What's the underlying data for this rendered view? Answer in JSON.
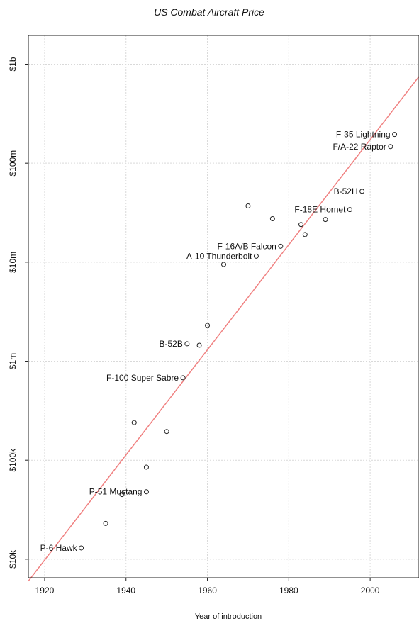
{
  "chart_data": {
    "type": "scatter",
    "title": "US Combat Aircraft Price",
    "xlabel": "Year of introduction",
    "ylabel": "",
    "xlim": [
      1916,
      2012
    ],
    "ylog": true,
    "ylim": [
      6500,
      1950000000
    ],
    "grid": true,
    "xticks": [
      1920,
      1940,
      1960,
      1980,
      2000
    ],
    "xtick_labels": [
      "1920",
      "1940",
      "1960",
      "1980",
      "2000"
    ],
    "yticks": [
      10000,
      100000,
      1000000,
      10000000,
      100000000,
      1000000000
    ],
    "ytick_labels": [
      "$10k",
      "$100k",
      "$1m",
      "$10m",
      "$100m",
      "$1b"
    ],
    "points": [
      {
        "x": 1929,
        "y": 13000,
        "label": "P-6 Hawk",
        "label_side": "left"
      },
      {
        "x": 1935,
        "y": 23000,
        "label": ""
      },
      {
        "x": 1939,
        "y": 45000,
        "label": ""
      },
      {
        "x": 1945,
        "y": 48000,
        "label": "P-51 Mustang",
        "label_side": "left"
      },
      {
        "x": 1945,
        "y": 85000,
        "label": ""
      },
      {
        "x": 1942,
        "y": 240000,
        "label": ""
      },
      {
        "x": 1950,
        "y": 195000,
        "label": ""
      },
      {
        "x": 1954,
        "y": 680000,
        "label": "F-100 Super Sabre",
        "label_side": "left"
      },
      {
        "x": 1955,
        "y": 1500000,
        "label": "B-52B",
        "label_side": "left"
      },
      {
        "x": 1958,
        "y": 1450000,
        "label": ""
      },
      {
        "x": 1960,
        "y": 2300000,
        "label": ""
      },
      {
        "x": 1964,
        "y": 9500000,
        "label": ""
      },
      {
        "x": 1972,
        "y": 11500000,
        "label": "A-10 Thunderbolt",
        "label_side": "left"
      },
      {
        "x": 1978,
        "y": 14500000,
        "label": "F-16A/B Falcon",
        "label_side": "left"
      },
      {
        "x": 1970,
        "y": 37000000,
        "label": ""
      },
      {
        "x": 1976,
        "y": 27500000,
        "label": ""
      },
      {
        "x": 1983,
        "y": 24000000,
        "label": ""
      },
      {
        "x": 1984,
        "y": 19000000,
        "label": ""
      },
      {
        "x": 1989,
        "y": 27000000,
        "label": ""
      },
      {
        "x": 1995,
        "y": 34000000,
        "label": "F-18E Hornet",
        "label_side": "left"
      },
      {
        "x": 1998,
        "y": 52000000,
        "label": "B-52H",
        "label_side": "left"
      },
      {
        "x": 2005,
        "y": 147000000,
        "label": "F/A-22 Raptor",
        "label_side": "left"
      },
      {
        "x": 2006,
        "y": 195000000,
        "label": "F-35 Lightning",
        "label_side": "left"
      }
    ],
    "trend_line": {
      "x": [
        1916,
        2012
      ],
      "y": [
        6020,
        750000000
      ],
      "color": "#f08080"
    },
    "point_color": "#222222",
    "grid_color": "#d9d9d9"
  }
}
